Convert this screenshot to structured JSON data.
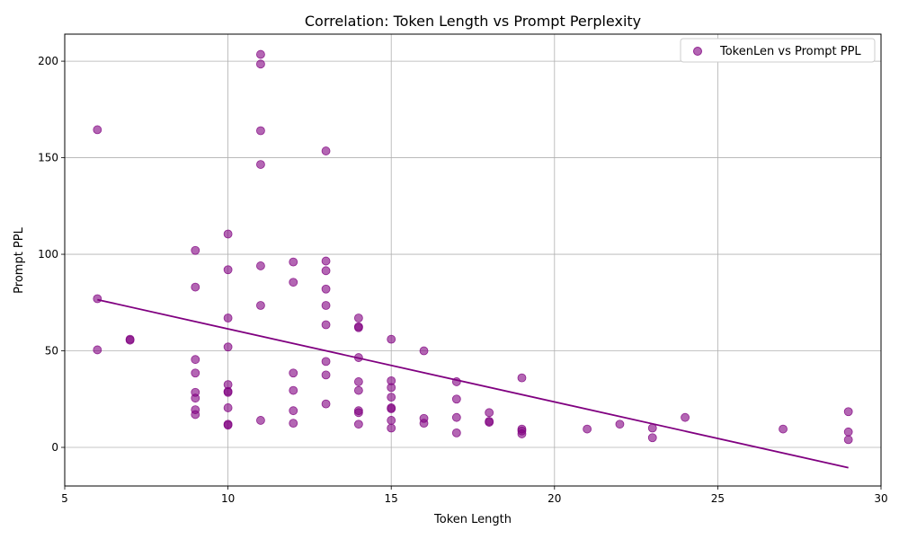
{
  "chart_data": {
    "type": "scatter",
    "title": "Correlation: Token Length vs Prompt Perplexity",
    "xlabel": "Token Length",
    "ylabel": "Prompt PPL",
    "xlim": [
      5,
      30
    ],
    "ylim": [
      -20,
      214
    ],
    "xticks": [
      5,
      10,
      15,
      20,
      25,
      30
    ],
    "yticks": [
      0,
      50,
      100,
      150,
      200
    ],
    "grid": true,
    "legend_position": "top-right",
    "point_color": "#800080",
    "line_color": "#800080",
    "series": [
      {
        "name": "TokenLen vs Prompt PPL",
        "points": [
          [
            6,
            164.5
          ],
          [
            6,
            77
          ],
          [
            6,
            50.5
          ],
          [
            7,
            55.5
          ],
          [
            7,
            56
          ],
          [
            9,
            102
          ],
          [
            9,
            83
          ],
          [
            9,
            45.5
          ],
          [
            9,
            38.5
          ],
          [
            9,
            28.5
          ],
          [
            9,
            25.5
          ],
          [
            9,
            19.5
          ],
          [
            9,
            17
          ],
          [
            10,
            110.5
          ],
          [
            10,
            92
          ],
          [
            10,
            67
          ],
          [
            10,
            52
          ],
          [
            10,
            32.5
          ],
          [
            10,
            29
          ],
          [
            10,
            28.5
          ],
          [
            10,
            20.5
          ],
          [
            10,
            12
          ],
          [
            10,
            11.5
          ],
          [
            11,
            203.5
          ],
          [
            11,
            198.5
          ],
          [
            11,
            164
          ],
          [
            11,
            146.5
          ],
          [
            11,
            94
          ],
          [
            11,
            73.5
          ],
          [
            11,
            14
          ],
          [
            12,
            96
          ],
          [
            12,
            85.5
          ],
          [
            12,
            38.5
          ],
          [
            12,
            29.5
          ],
          [
            12,
            19
          ],
          [
            12,
            12.5
          ],
          [
            13,
            153.5
          ],
          [
            13,
            96.5
          ],
          [
            13,
            91.5
          ],
          [
            13,
            82
          ],
          [
            13,
            73.5
          ],
          [
            13,
            63.5
          ],
          [
            13,
            44.5
          ],
          [
            13,
            37.5
          ],
          [
            13,
            22.5
          ],
          [
            14,
            67
          ],
          [
            14,
            62.5
          ],
          [
            14,
            62
          ],
          [
            14,
            46.5
          ],
          [
            14,
            34
          ],
          [
            14,
            29.5
          ],
          [
            14,
            19
          ],
          [
            14,
            18
          ],
          [
            14,
            12
          ],
          [
            15,
            56
          ],
          [
            15,
            34.5
          ],
          [
            15,
            31
          ],
          [
            15,
            26
          ],
          [
            15,
            20.5
          ],
          [
            15,
            20
          ],
          [
            15,
            14
          ],
          [
            15,
            10
          ],
          [
            16,
            50
          ],
          [
            16,
            15
          ],
          [
            16,
            12.5
          ],
          [
            17,
            34
          ],
          [
            17,
            25
          ],
          [
            17,
            15.5
          ],
          [
            17,
            7.5
          ],
          [
            18,
            18
          ],
          [
            18,
            13.5
          ],
          [
            18,
            13
          ],
          [
            19,
            36
          ],
          [
            19,
            9.5
          ],
          [
            19,
            8.5
          ],
          [
            19,
            7
          ],
          [
            21,
            9.5
          ],
          [
            22,
            12
          ],
          [
            23,
            10
          ],
          [
            23,
            5
          ],
          [
            24,
            15.5
          ],
          [
            27,
            9.5
          ],
          [
            29,
            18.5
          ],
          [
            29,
            8
          ],
          [
            29,
            4
          ]
        ]
      }
    ],
    "trendline": {
      "x": [
        6,
        29
      ],
      "y": [
        76.5,
        -10.5
      ]
    }
  }
}
